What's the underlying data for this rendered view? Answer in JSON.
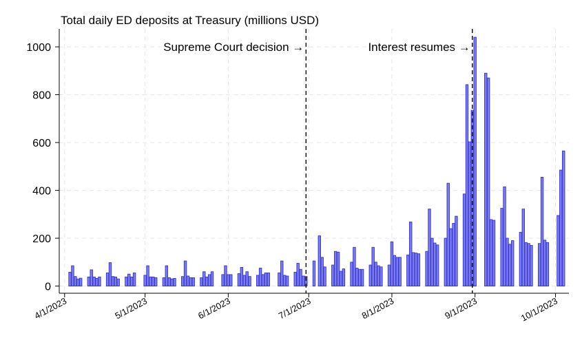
{
  "chart_data": {
    "type": "bar",
    "title": "Total daily ED deposits at Treasury (millions USD)",
    "xlabel": "",
    "ylabel": "",
    "x_axis": "date",
    "xlim": [
      "2023-03-30",
      "2023-10-06"
    ],
    "ylim": [
      -30,
      1075
    ],
    "y_ticks": [
      0,
      200,
      400,
      600,
      800,
      1000
    ],
    "x_ticks": [
      {
        "date": "2023-04-01",
        "label": "4/1/2023"
      },
      {
        "date": "2023-05-01",
        "label": "5/1/2023"
      },
      {
        "date": "2023-06-01",
        "label": "6/1/2023"
      },
      {
        "date": "2023-07-01",
        "label": "7/1/2023"
      },
      {
        "date": "2023-08-01",
        "label": "8/1/2023"
      },
      {
        "date": "2023-09-01",
        "label": "9/1/2023"
      },
      {
        "date": "2023-10-01",
        "label": "10/1/2023"
      }
    ],
    "grid": true,
    "legend": "none",
    "bar_color": "#7b7bf2",
    "bar_edge_color": "#3535c8",
    "annotations": [
      {
        "date": "2023-06-30",
        "label": "Supreme Court decision →",
        "y": 1000
      },
      {
        "date": "2023-08-31",
        "label": "Interest resumes →",
        "y": 1000
      }
    ],
    "points": [
      [
        "2023-04-03",
        58
      ],
      [
        "2023-04-04",
        85
      ],
      [
        "2023-04-05",
        40
      ],
      [
        "2023-04-06",
        30
      ],
      [
        "2023-04-07",
        33
      ],
      [
        "2023-04-10",
        38
      ],
      [
        "2023-04-11",
        68
      ],
      [
        "2023-04-12",
        38
      ],
      [
        "2023-04-13",
        32
      ],
      [
        "2023-04-14",
        38
      ],
      [
        "2023-04-17",
        55
      ],
      [
        "2023-04-18",
        98
      ],
      [
        "2023-04-19",
        40
      ],
      [
        "2023-04-20",
        38
      ],
      [
        "2023-04-21",
        30
      ],
      [
        "2023-04-24",
        38
      ],
      [
        "2023-04-25",
        50
      ],
      [
        "2023-04-26",
        38
      ],
      [
        "2023-04-27",
        55
      ],
      [
        "2023-05-01",
        45
      ],
      [
        "2023-05-02",
        85
      ],
      [
        "2023-05-03",
        38
      ],
      [
        "2023-05-04",
        38
      ],
      [
        "2023-05-05",
        35
      ],
      [
        "2023-05-08",
        35
      ],
      [
        "2023-05-09",
        85
      ],
      [
        "2023-05-10",
        35
      ],
      [
        "2023-05-11",
        30
      ],
      [
        "2023-05-12",
        32
      ],
      [
        "2023-05-15",
        40
      ],
      [
        "2023-05-16",
        105
      ],
      [
        "2023-05-17",
        42
      ],
      [
        "2023-05-18",
        35
      ],
      [
        "2023-05-19",
        35
      ],
      [
        "2023-05-22",
        35
      ],
      [
        "2023-05-23",
        60
      ],
      [
        "2023-05-24",
        38
      ],
      [
        "2023-05-25",
        48
      ],
      [
        "2023-05-26",
        60
      ],
      [
        "2023-05-30",
        48
      ],
      [
        "2023-05-31",
        85
      ],
      [
        "2023-06-01",
        48
      ],
      [
        "2023-06-02",
        48
      ],
      [
        "2023-06-05",
        52
      ],
      [
        "2023-06-06",
        78
      ],
      [
        "2023-06-07",
        45
      ],
      [
        "2023-06-08",
        60
      ],
      [
        "2023-06-09",
        40
      ],
      [
        "2023-06-12",
        45
      ],
      [
        "2023-06-13",
        75
      ],
      [
        "2023-06-14",
        48
      ],
      [
        "2023-06-15",
        55
      ],
      [
        "2023-06-16",
        55
      ],
      [
        "2023-06-20",
        55
      ],
      [
        "2023-06-21",
        105
      ],
      [
        "2023-06-22",
        45
      ],
      [
        "2023-06-23",
        42
      ],
      [
        "2023-06-26",
        58
      ],
      [
        "2023-06-27",
        95
      ],
      [
        "2023-06-28",
        70
      ],
      [
        "2023-06-29",
        42
      ],
      [
        "2023-06-30",
        40
      ],
      [
        "2023-07-03",
        105
      ],
      [
        "2023-07-05",
        210
      ],
      [
        "2023-07-06",
        120
      ],
      [
        "2023-07-07",
        80
      ],
      [
        "2023-07-10",
        88
      ],
      [
        "2023-07-11",
        145
      ],
      [
        "2023-07-12",
        142
      ],
      [
        "2023-07-13",
        62
      ],
      [
        "2023-07-14",
        72
      ],
      [
        "2023-07-17",
        100
      ],
      [
        "2023-07-18",
        162
      ],
      [
        "2023-07-19",
        75
      ],
      [
        "2023-07-20",
        70
      ],
      [
        "2023-07-21",
        70
      ],
      [
        "2023-07-24",
        88
      ],
      [
        "2023-07-25",
        162
      ],
      [
        "2023-07-26",
        100
      ],
      [
        "2023-07-27",
        85
      ],
      [
        "2023-07-28",
        80
      ],
      [
        "2023-07-31",
        88
      ],
      [
        "2023-08-01",
        185
      ],
      [
        "2023-08-02",
        128
      ],
      [
        "2023-08-03",
        120
      ],
      [
        "2023-08-04",
        120
      ],
      [
        "2023-08-07",
        130
      ],
      [
        "2023-08-08",
        268
      ],
      [
        "2023-08-09",
        140
      ],
      [
        "2023-08-10",
        138
      ],
      [
        "2023-08-11",
        135
      ],
      [
        "2023-08-14",
        145
      ],
      [
        "2023-08-15",
        322
      ],
      [
        "2023-08-16",
        200
      ],
      [
        "2023-08-17",
        180
      ],
      [
        "2023-08-18",
        172
      ],
      [
        "2023-08-21",
        200
      ],
      [
        "2023-08-22",
        430
      ],
      [
        "2023-08-23",
        240
      ],
      [
        "2023-08-24",
        262
      ],
      [
        "2023-08-25",
        292
      ],
      [
        "2023-08-28",
        385
      ],
      [
        "2023-08-29",
        842
      ],
      [
        "2023-08-30",
        603
      ],
      [
        "2023-08-31",
        735
      ],
      [
        "2023-09-01",
        1040
      ],
      [
        "2023-09-05",
        890
      ],
      [
        "2023-09-06",
        870
      ],
      [
        "2023-09-07",
        278
      ],
      [
        "2023-09-08",
        275
      ],
      [
        "2023-09-11",
        325
      ],
      [
        "2023-09-12",
        415
      ],
      [
        "2023-09-13",
        200
      ],
      [
        "2023-09-14",
        175
      ],
      [
        "2023-09-15",
        190
      ],
      [
        "2023-09-18",
        225
      ],
      [
        "2023-09-19",
        322
      ],
      [
        "2023-09-20",
        182
      ],
      [
        "2023-09-21",
        178
      ],
      [
        "2023-09-22",
        170
      ],
      [
        "2023-09-25",
        178
      ],
      [
        "2023-09-26",
        455
      ],
      [
        "2023-09-27",
        192
      ],
      [
        "2023-09-28",
        182
      ],
      [
        "2023-10-02",
        295
      ],
      [
        "2023-10-03",
        485
      ],
      [
        "2023-10-04",
        565
      ]
    ]
  }
}
